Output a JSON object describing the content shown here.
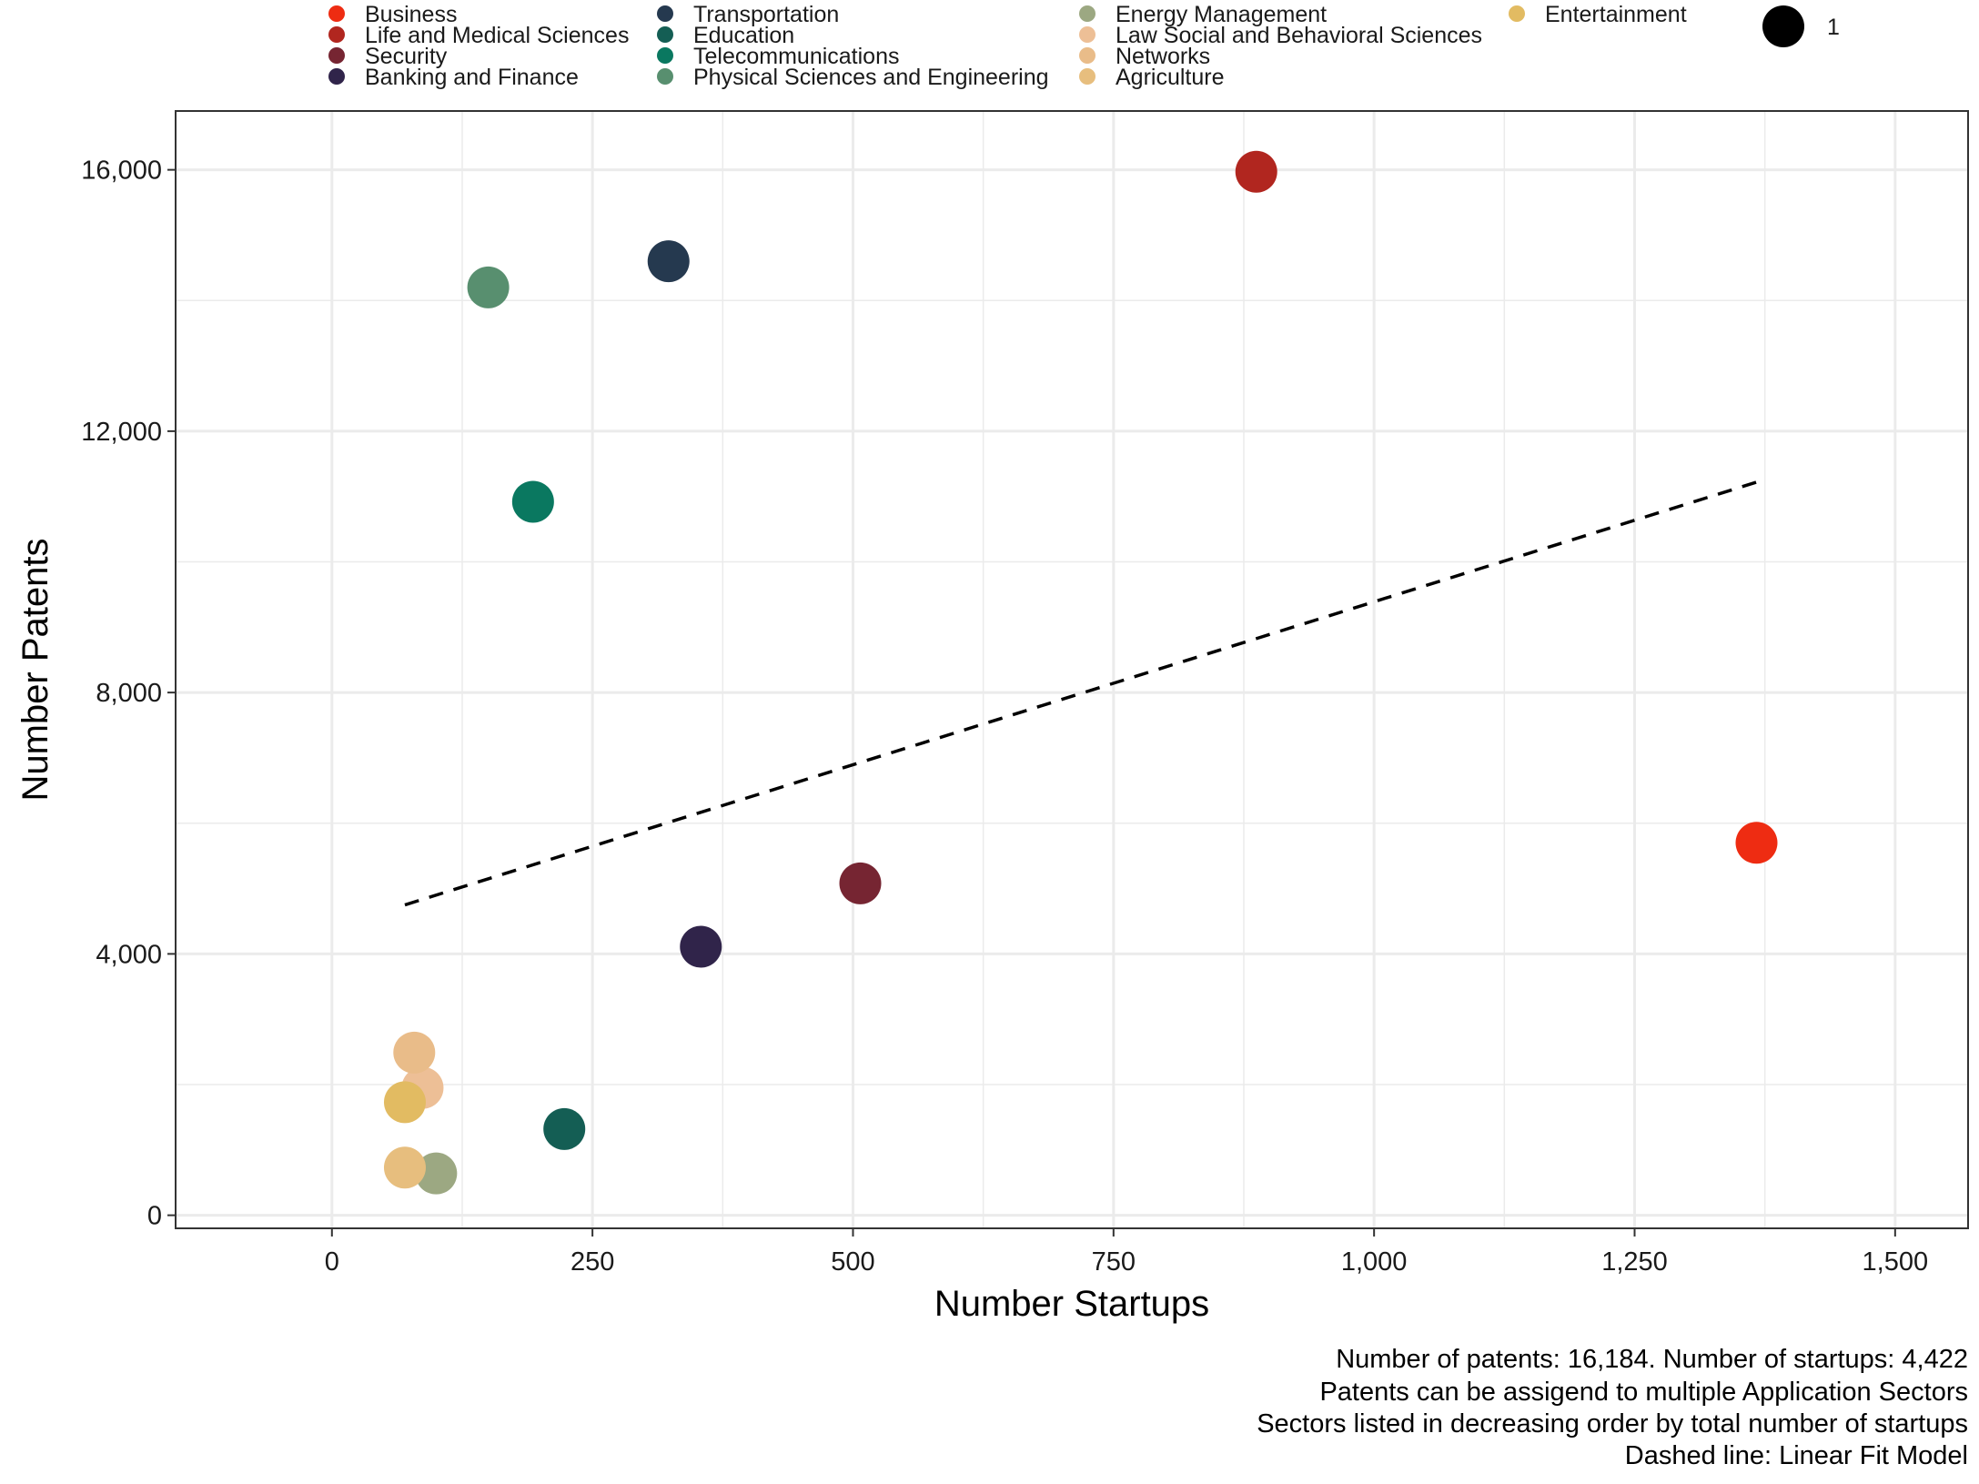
{
  "chart_data": {
    "type": "scatter",
    "title": "",
    "xlabel": "Number Startups",
    "ylabel": "Number Patents",
    "xlim": [
      -150,
      1570
    ],
    "ylim": [
      -200,
      16900
    ],
    "x_ticks": [
      0,
      250,
      500,
      750,
      1000,
      1250,
      1500
    ],
    "x_tick_labels": [
      "0",
      "250",
      "500",
      "750",
      "1,000",
      "1,250",
      "1,500"
    ],
    "y_ticks": [
      0,
      4000,
      8000,
      12000,
      16000
    ],
    "y_tick_labels": [
      "0",
      "4,000",
      "8,000",
      "12,000",
      "16,000"
    ],
    "grid": true,
    "legend_position": "top",
    "size_legend": {
      "label": "1"
    },
    "series": [
      {
        "name": "Business",
        "color": "#EE2C12",
        "x": 1367,
        "y": 5700
      },
      {
        "name": "Life and Medical Sciences",
        "color": "#B1261F",
        "x": 887,
        "y": 15970
      },
      {
        "name": "Security",
        "color": "#762532",
        "x": 507,
        "y": 5080
      },
      {
        "name": "Banking and Finance",
        "color": "#30244A",
        "x": 354,
        "y": 4110
      },
      {
        "name": "Transportation",
        "color": "#25394F",
        "x": 323,
        "y": 14600
      },
      {
        "name": "Education",
        "color": "#145E54",
        "x": 223,
        "y": 1320
      },
      {
        "name": "Telecommunications",
        "color": "#0A7860",
        "x": 193,
        "y": 10920
      },
      {
        "name": "Physical Sciences and Engineering",
        "color": "#588F6F",
        "x": 150,
        "y": 14200
      },
      {
        "name": "Energy Management",
        "color": "#9CA882",
        "x": 100,
        "y": 640
      },
      {
        "name": "Law Social and Behavioral Sciences",
        "color": "#EDBF96",
        "x": 87,
        "y": 1950
      },
      {
        "name": "Networks",
        "color": "#E9BC89",
        "x": 79,
        "y": 2490
      },
      {
        "name": "Agriculture",
        "color": "#E7BE7E",
        "x": 70,
        "y": 730
      },
      {
        "name": "Entertainment",
        "color": "#E2BB62",
        "x": 70,
        "y": 1730
      }
    ],
    "fit_line": {
      "label": "Linear Fit Model",
      "x": [
        70,
        1367
      ],
      "y": [
        4750,
        11220
      ]
    }
  },
  "caption": [
    "Number of patents: 16,184. Number of startups: 4,422",
    "Patents can be assigend to multiple Application Sectors",
    "Sectors listed in decreasing order by total number of startups",
    "Dashed line: Linear Fit Model"
  ]
}
